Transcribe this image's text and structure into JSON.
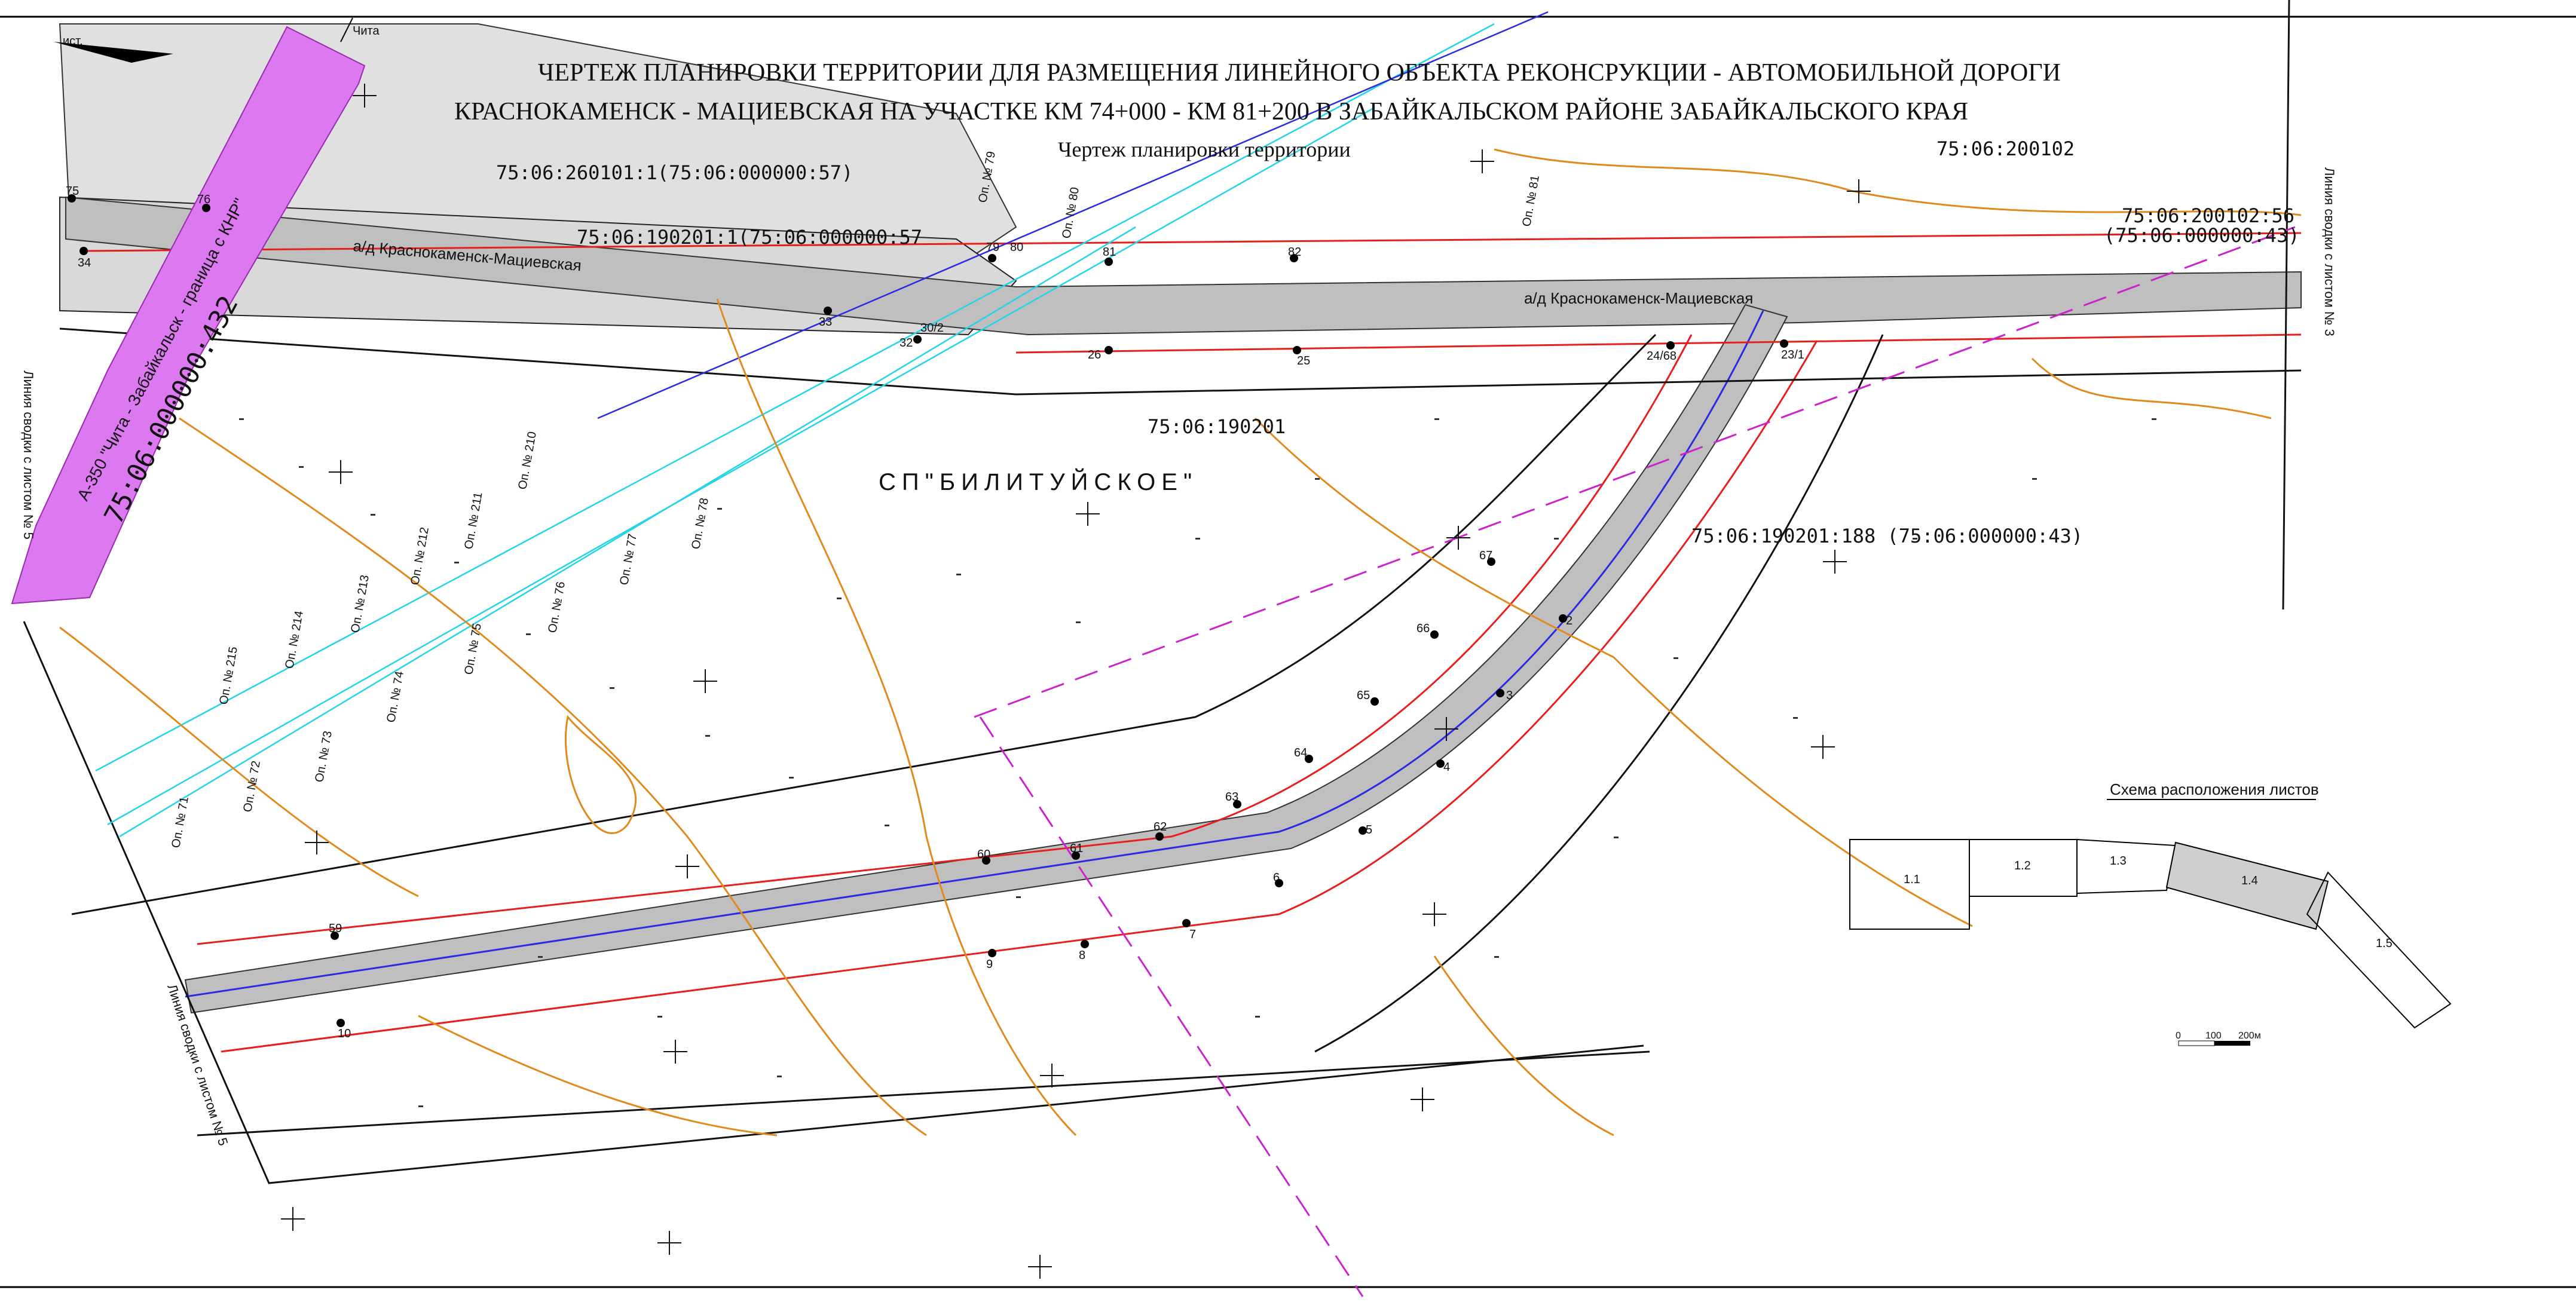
{
  "title": {
    "line1": "ЧЕРТЕЖ ПЛАНИРОВКИ ТЕРРИТОРИИ ДЛЯ РАЗМЕЩЕНИЯ ЛИНЕЙНОГО ОБЪЕКТА РЕКОНСРУКЦИИ - АВТОМОБИЛЬНОЙ ДОРОГИ",
    "line2": "КРАСНОКАМЕНСК - МАЦИЕВСКАЯ НА УЧАСТКЕ КМ 74+000 - КМ 81+200 В ЗАБАЙКАЛЬСКОМ РАЙОНЕ ЗАБАЙКАЛЬСКОГО КРАЯ",
    "subtitle": "Чертеж планировки территории"
  },
  "parcels": {
    "p1": "75:06:260101:1(75:06:000000:57)",
    "p2": "75:06:190201:1(75:06:000000:57",
    "p3": "75:06:200102",
    "p4a": "75:06:200102:56",
    "p4b": "(75:06:000000:43)",
    "p5": "75:06:190201",
    "p6": "75:06:190201:188 (75:06:000000:43)",
    "pink_cad": "75:06:000000:432",
    "pink_road": "А-350 \"Чита - Забайкальск - граница с КНР\""
  },
  "settlement": "СП\"БИЛИТУЙСКОЕ\"",
  "roads": {
    "label_left": "а/д Краснокаменск-Мациевская",
    "label_right": "а/д Краснокаменск-Мациевская"
  },
  "compass": {
    "north_label": "ист.",
    "direction_label": "Чита"
  },
  "edge_labels": {
    "left": "Линия сводки с листом № 5",
    "bottom_left": "Линия сводки с листом № 5",
    "right": "Линия сводки с листом № 3"
  },
  "point_labels": [
    "75",
    "76",
    "34",
    "33",
    "32",
    "30/2",
    "79",
    "80",
    "81",
    "82",
    "26",
    "25",
    "24/68",
    "23/1",
    "67",
    "66",
    "65",
    "64",
    "63",
    "62",
    "61",
    "60",
    "59",
    "10",
    "9",
    "8",
    "7",
    "6",
    "5",
    "4",
    "3",
    "2"
  ],
  "pole_labels": [
    "Оп. № 210",
    "Оп. № 211",
    "Оп. № 212",
    "Оп. № 213",
    "Оп. № 214",
    "Оп. № 215",
    "Оп. № 72",
    "Оп. № 73",
    "Оп. № 74",
    "Оп. № 75",
    "Оп. № 76",
    "Оп. № 77",
    "Оп. № 78",
    "Оп. № 79",
    "Оп. № 80",
    "Оп. № 81",
    "Оп. № 71"
  ],
  "scheme": {
    "title": "Схема расположения листов",
    "sheets": [
      "1.1",
      "1.2",
      "1.3",
      "1.4",
      "1.5"
    ]
  },
  "scale": {
    "labels": [
      "0",
      "100",
      "200м"
    ]
  },
  "colors": {
    "pink_corridor": "#dc78f0",
    "road_fill": "#bfbfbf",
    "parcel_fill": "#e0e0e0",
    "red_line": "#e81e1e",
    "contour": "#e08a1e",
    "cyan_line": "#22d4e8",
    "blue_line": "#2a2ae0",
    "magenta_dash": "#cc22cc"
  }
}
